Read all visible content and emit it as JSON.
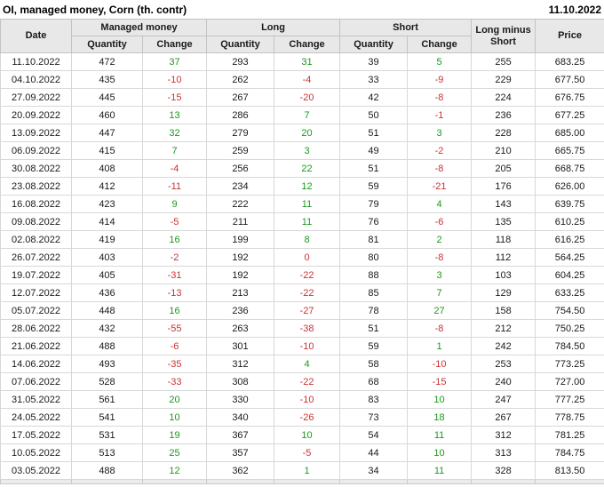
{
  "colors": {
    "positive_change": "#1a9a1a",
    "negative_change": "#cc3333",
    "header_bg": "#e8e8e8",
    "body_text": "#1a1a1a",
    "partial_row_bg": "#ebebeb"
  },
  "chart_data": {
    "type": "table",
    "title": "OI, managed money, Corn (th. contr)",
    "as_of_date": "11.10.2022",
    "column_groups": [
      {
        "label": "Managed money",
        "span": 2
      },
      {
        "label": "Long",
        "span": 2
      },
      {
        "label": "Short",
        "span": 2
      }
    ],
    "header": {
      "date": "Date",
      "group_managed_money": "Managed money",
      "group_long": "Long",
      "group_short": "Short",
      "quantity": "Quantity",
      "change": "Change",
      "long_minus_short": "Long minus Short",
      "price": "Price"
    },
    "columns": [
      "Date",
      "Managed money Quantity",
      "Managed money Change",
      "Long Quantity",
      "Long Change",
      "Short Quantity",
      "Short Change",
      "Long minus Short",
      "Price"
    ],
    "rows": [
      [
        "11.10.2022",
        "472",
        "37",
        "293",
        "31",
        "39",
        "5",
        "255",
        "683.25"
      ],
      [
        "04.10.2022",
        "435",
        "-10",
        "262",
        "-4",
        "33",
        "-9",
        "229",
        "677.50"
      ],
      [
        "27.09.2022",
        "445",
        "-15",
        "267",
        "-20",
        "42",
        "-8",
        "224",
        "676.75"
      ],
      [
        "20.09.2022",
        "460",
        "13",
        "286",
        "7",
        "50",
        "-1",
        "236",
        "677.25"
      ],
      [
        "13.09.2022",
        "447",
        "32",
        "279",
        "20",
        "51",
        "3",
        "228",
        "685.00"
      ],
      [
        "06.09.2022",
        "415",
        "7",
        "259",
        "3",
        "49",
        "-2",
        "210",
        "665.75"
      ],
      [
        "30.08.2022",
        "408",
        "-4",
        "256",
        "22",
        "51",
        "-8",
        "205",
        "668.75"
      ],
      [
        "23.08.2022",
        "412",
        "-11",
        "234",
        "12",
        "59",
        "-21",
        "176",
        "626.00"
      ],
      [
        "16.08.2022",
        "423",
        "9",
        "222",
        "11",
        "79",
        "4",
        "143",
        "639.75"
      ],
      [
        "09.08.2022",
        "414",
        "-5",
        "211",
        "11",
        "76",
        "-6",
        "135",
        "610.25"
      ],
      [
        "02.08.2022",
        "419",
        "16",
        "199",
        "8",
        "81",
        "2",
        "118",
        "616.25"
      ],
      [
        "26.07.2022",
        "403",
        "-2",
        "192",
        "0",
        "80",
        "-8",
        "112",
        "564.25"
      ],
      [
        "19.07.2022",
        "405",
        "-31",
        "192",
        "-22",
        "88",
        "3",
        "103",
        "604.25"
      ],
      [
        "12.07.2022",
        "436",
        "-13",
        "213",
        "-22",
        "85",
        "7",
        "129",
        "633.25"
      ],
      [
        "05.07.2022",
        "448",
        "16",
        "236",
        "-27",
        "78",
        "27",
        "158",
        "754.50"
      ],
      [
        "28.06.2022",
        "432",
        "-55",
        "263",
        "-38",
        "51",
        "-8",
        "212",
        "750.25"
      ],
      [
        "21.06.2022",
        "488",
        "-6",
        "301",
        "-10",
        "59",
        "1",
        "242",
        "784.50"
      ],
      [
        "14.06.2022",
        "493",
        "-35",
        "312",
        "4",
        "58",
        "-10",
        "253",
        "773.25"
      ],
      [
        "07.06.2022",
        "528",
        "-33",
        "308",
        "-22",
        "68",
        "-15",
        "240",
        "727.00"
      ],
      [
        "31.05.2022",
        "561",
        "20",
        "330",
        "-10",
        "83",
        "10",
        "247",
        "777.25"
      ],
      [
        "24.05.2022",
        "541",
        "10",
        "340",
        "-26",
        "73",
        "18",
        "267",
        "778.75"
      ],
      [
        "17.05.2022",
        "531",
        "19",
        "367",
        "10",
        "54",
        "11",
        "312",
        "781.25"
      ],
      [
        "10.05.2022",
        "513",
        "25",
        "357",
        "-5",
        "44",
        "10",
        "313",
        "784.75"
      ],
      [
        "03.05.2022",
        "488",
        "12",
        "362",
        "1",
        "34",
        "11",
        "328",
        "813.50"
      ]
    ]
  }
}
